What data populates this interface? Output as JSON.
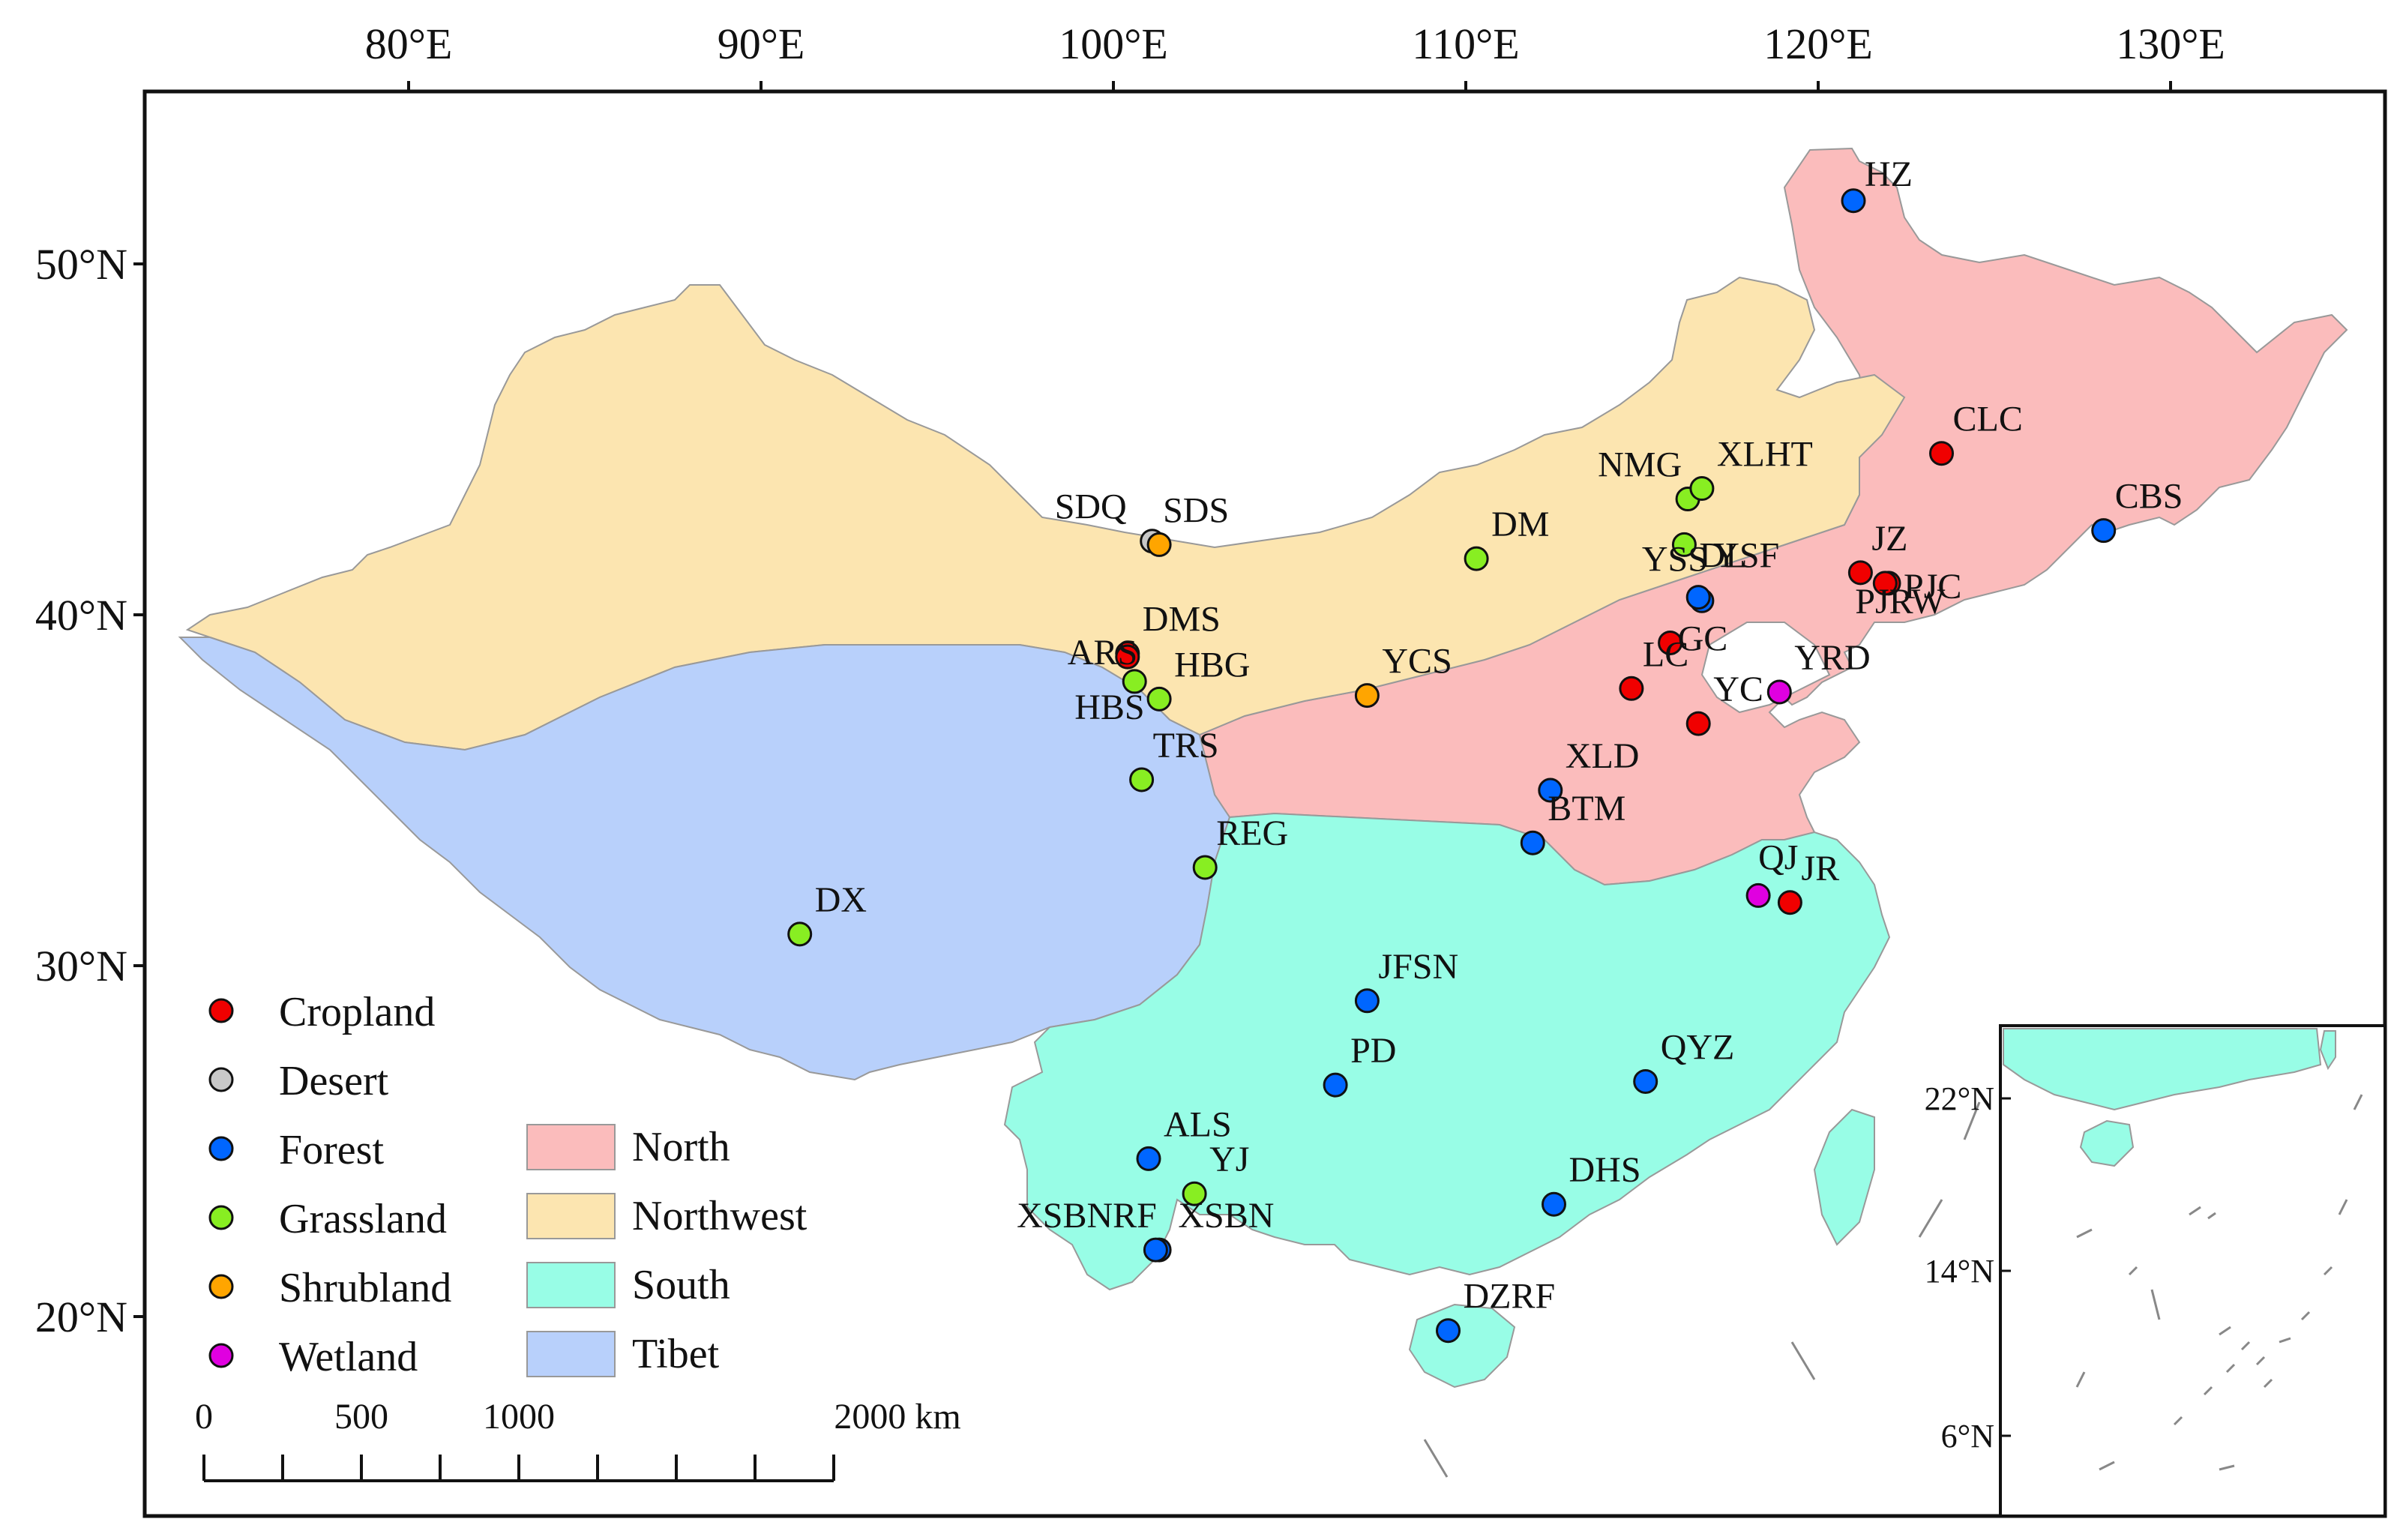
{
  "axes": {
    "lon_ticks": [
      "80°E",
      "90°E",
      "100°E",
      "110°E",
      "120°E",
      "130°E"
    ],
    "lat_ticks": [
      "50°N",
      "40°N",
      "30°N",
      "20°N"
    ]
  },
  "inset": {
    "lat_ticks": [
      "22°N",
      "14°N",
      "6°N"
    ]
  },
  "colors": {
    "North": "#fbbcbc",
    "Northwest": "#fce5b0",
    "South": "#98fde6",
    "Tibet": "#b8d0fb",
    "Cropland": "#f00000",
    "Desert": "#c8c8c8",
    "Forest": "#0066ff",
    "Grassland": "#88ee22",
    "Shrubland": "#ffa500",
    "Wetland": "#e000e0"
  },
  "legend": {
    "land_cover": [
      "Cropland",
      "Desert",
      "Forest",
      "Grassland",
      "Shrubland",
      "Wetland"
    ],
    "regions": [
      "North",
      "Northwest",
      "South",
      "Tibet"
    ]
  },
  "scale_bar": {
    "labels": [
      "0",
      "500",
      "1000",
      "2000 km"
    ]
  },
  "sites": [
    {
      "name": "HZ",
      "type": "Forest",
      "lon": 121.0,
      "lat": 51.8
    },
    {
      "name": "CLC",
      "type": "Cropland",
      "lon": 123.5,
      "lat": 44.6
    },
    {
      "name": "CBS",
      "type": "Forest",
      "lon": 128.1,
      "lat": 42.4
    },
    {
      "name": "NMG",
      "type": "Grassland",
      "lon": 116.3,
      "lat": 43.3
    },
    {
      "name": "XLHT",
      "type": "Grassland",
      "lon": 116.7,
      "lat": 43.6
    },
    {
      "name": "DL",
      "type": "Grassland",
      "lon": 116.2,
      "lat": 42.0
    },
    {
      "name": "SDQ",
      "type": "Desert",
      "lon": 101.1,
      "lat": 42.1
    },
    {
      "name": "SDS",
      "type": "Shrubland",
      "lon": 101.3,
      "lat": 42.0
    },
    {
      "name": "DM",
      "type": "Grassland",
      "lon": 110.3,
      "lat": 41.6
    },
    {
      "name": "JZ",
      "type": "Cropland",
      "lon": 121.2,
      "lat": 41.2
    },
    {
      "name": "PJC",
      "type": "Cropland",
      "lon": 122.0,
      "lat": 40.9
    },
    {
      "name": "YSS",
      "type": "Forest",
      "lon": 116.7,
      "lat": 40.4
    },
    {
      "name": "YSF",
      "type": "Forest",
      "lon": 116.6,
      "lat": 40.5
    },
    {
      "name": "GC",
      "type": "Cropland",
      "lon": 115.8,
      "lat": 39.2
    },
    {
      "name": "PJRW",
      "type": "Cropland",
      "lon": 121.9,
      "lat": 40.9
    },
    {
      "name": "DMS",
      "type": "Cropland",
      "lon": 100.4,
      "lat": 38.9
    },
    {
      "name": "ARS",
      "type": "Cropland",
      "lon": 100.4,
      "lat": 38.8
    },
    {
      "name": "LC",
      "type": "Cropland",
      "lon": 114.7,
      "lat": 37.9
    },
    {
      "name": "YRD",
      "type": "Wetland",
      "lon": 118.9,
      "lat": 37.8
    },
    {
      "name": "YC",
      "type": "Cropland",
      "lon": 116.6,
      "lat": 36.9
    },
    {
      "name": "YCS",
      "type": "Shrubland",
      "lon": 107.2,
      "lat": 37.7
    },
    {
      "name": "HBS",
      "type": "Grassland",
      "lon": 100.6,
      "lat": 38.1
    },
    {
      "name": "HBG",
      "type": "Grassland",
      "lon": 101.3,
      "lat": 37.6
    },
    {
      "name": "TRS",
      "type": "Grassland",
      "lon": 100.8,
      "lat": 35.3
    },
    {
      "name": "XLD",
      "type": "Forest",
      "lon": 112.4,
      "lat": 35.0
    },
    {
      "name": "BTM",
      "type": "Forest",
      "lon": 111.9,
      "lat": 33.5
    },
    {
      "name": "REG",
      "type": "Grassland",
      "lon": 102.6,
      "lat": 32.8
    },
    {
      "name": "QJ",
      "type": "Wetland",
      "lon": 118.3,
      "lat": 32.0
    },
    {
      "name": "JR",
      "type": "Cropland",
      "lon": 119.2,
      "lat": 31.8
    },
    {
      "name": "DX",
      "type": "Grassland",
      "lon": 91.1,
      "lat": 30.9
    },
    {
      "name": "JFSN",
      "type": "Forest",
      "lon": 107.2,
      "lat": 29.0
    },
    {
      "name": "PD",
      "type": "Forest",
      "lon": 106.3,
      "lat": 26.6
    },
    {
      "name": "QYZ",
      "type": "Forest",
      "lon": 115.1,
      "lat": 26.7
    },
    {
      "name": "ALS",
      "type": "Forest",
      "lon": 101.0,
      "lat": 24.5
    },
    {
      "name": "YJ",
      "type": "Grassland",
      "lon": 102.3,
      "lat": 23.5
    },
    {
      "name": "XSBNRF",
      "type": "Forest",
      "lon": 101.3,
      "lat": 21.9
    },
    {
      "name": "XSBN",
      "type": "Forest",
      "lon": 101.2,
      "lat": 21.9
    },
    {
      "name": "DHS",
      "type": "Forest",
      "lon": 112.5,
      "lat": 23.2
    },
    {
      "name": "DZRF",
      "type": "Forest",
      "lon": 109.5,
      "lat": 19.6
    }
  ]
}
